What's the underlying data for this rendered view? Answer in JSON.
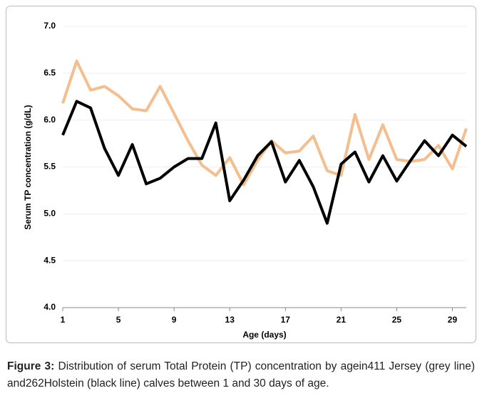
{
  "chart_data": {
    "type": "line",
    "xlabel": "Age (days)",
    "ylabel": "Serum TP concentration (g/dL)",
    "x": [
      1,
      2,
      3,
      4,
      5,
      6,
      7,
      8,
      9,
      10,
      11,
      12,
      13,
      14,
      15,
      16,
      17,
      18,
      19,
      20,
      21,
      22,
      23,
      24,
      25,
      26,
      27,
      28,
      29,
      30
    ],
    "series": [
      {
        "color": "#000000",
        "values": [
          5.84,
          6.2,
          6.13,
          5.7,
          5.41,
          5.74,
          5.32,
          5.38,
          5.5,
          5.59,
          5.59,
          5.97,
          5.14,
          5.36,
          5.62,
          5.77,
          5.34,
          5.57,
          5.29,
          4.9,
          5.53,
          5.66,
          5.34,
          5.62,
          5.35,
          5.57,
          5.78,
          5.62,
          5.84,
          5.72
        ]
      },
      {
        "color": "#f5be8e",
        "values": [
          6.18,
          6.63,
          6.32,
          6.36,
          6.26,
          6.12,
          6.1,
          6.36,
          6.07,
          5.78,
          5.52,
          5.41,
          5.6,
          5.31,
          5.57,
          5.78,
          5.65,
          5.67,
          5.83,
          5.46,
          5.41,
          6.06,
          5.58,
          5.95,
          5.58,
          5.56,
          5.58,
          5.73,
          5.48,
          5.91
        ]
      }
    ],
    "xlim": [
      1,
      30
    ],
    "xticks": [
      1,
      5,
      9,
      13,
      17,
      21,
      25,
      29
    ],
    "ylim": [
      4,
      7
    ],
    "yticks": [
      {
        "value": 4,
        "label": "4.0"
      },
      4.5,
      {
        "value": 5,
        "label": "5.0"
      },
      5.5,
      {
        "value": 6,
        "label": "6.0"
      },
      6.5,
      {
        "value": 7,
        "label": "7.0"
      }
    ],
    "grid": true
  },
  "caption": {
    "label": "Figure 3:",
    "text": "Distribution of serum Total Protein (TP) concentration by agein411 Jersey (grey line) and262Holstein (black line) calves between 1 and 30 days of age."
  }
}
